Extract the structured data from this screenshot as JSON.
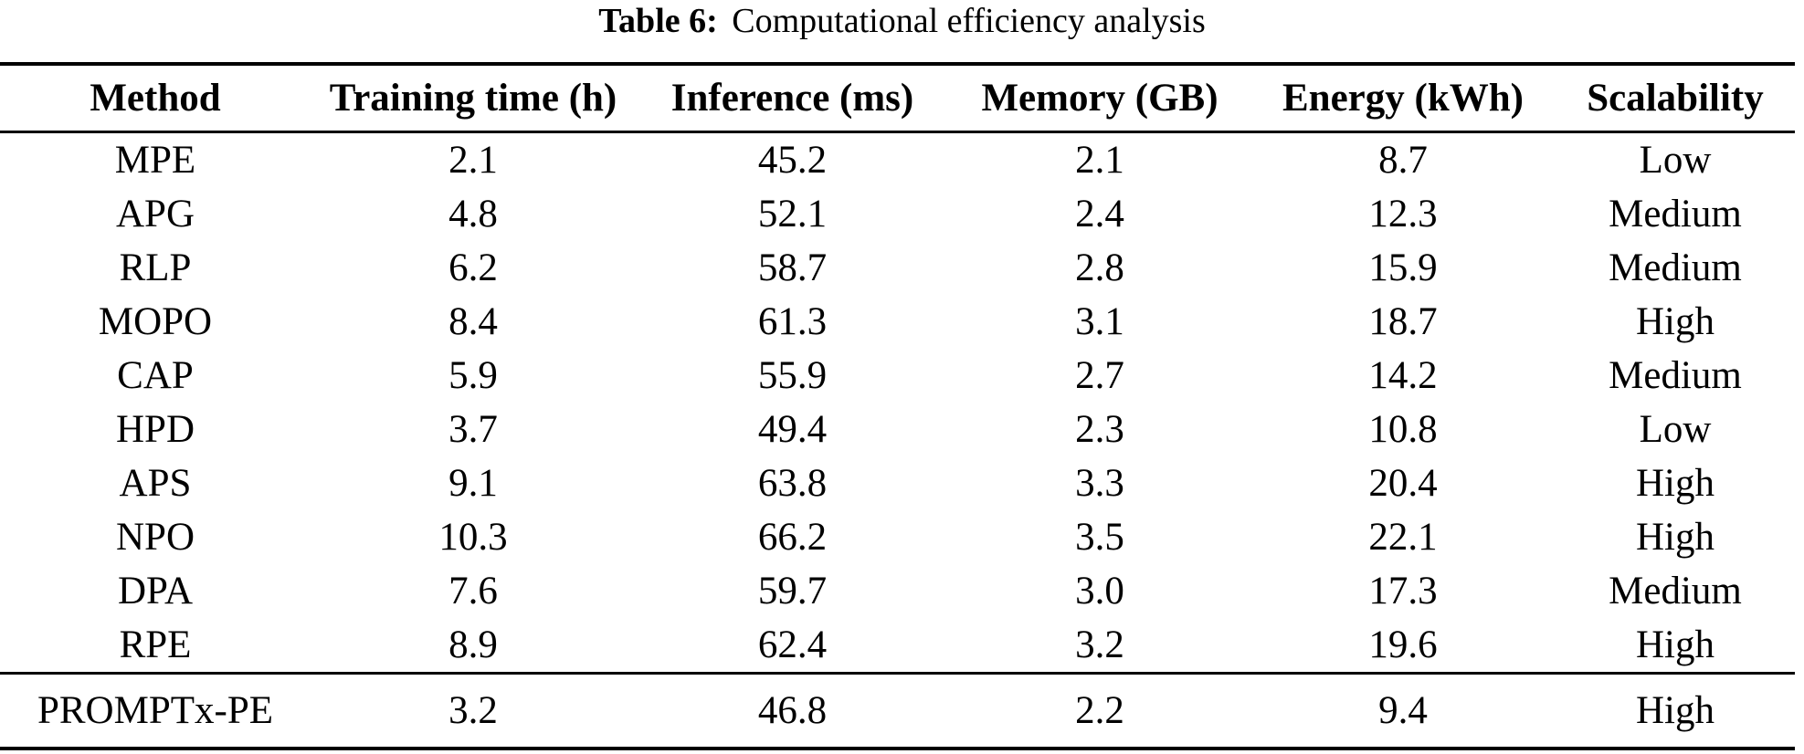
{
  "caption": {
    "label": "Table 6:",
    "text": "Computational efficiency analysis"
  },
  "table": {
    "columns": [
      "Method",
      "Training time (h)",
      "Inference (ms)",
      "Memory (GB)",
      "Energy (kWh)",
      "Scalability"
    ],
    "rows": [
      [
        "MPE",
        "2.1",
        "45.2",
        "2.1",
        "8.7",
        "Low"
      ],
      [
        "APG",
        "4.8",
        "52.1",
        "2.4",
        "12.3",
        "Medium"
      ],
      [
        "RLP",
        "6.2",
        "58.7",
        "2.8",
        "15.9",
        "Medium"
      ],
      [
        "MOPO",
        "8.4",
        "61.3",
        "3.1",
        "18.7",
        "High"
      ],
      [
        "CAP",
        "5.9",
        "55.9",
        "2.7",
        "14.2",
        "Medium"
      ],
      [
        "HPD",
        "3.7",
        "49.4",
        "2.3",
        "10.8",
        "Low"
      ],
      [
        "APS",
        "9.1",
        "63.8",
        "3.3",
        "20.4",
        "High"
      ],
      [
        "NPO",
        "10.3",
        "66.2",
        "3.5",
        "22.1",
        "High"
      ],
      [
        "DPA",
        "7.6",
        "59.7",
        "3.0",
        "17.3",
        "Medium"
      ],
      [
        "RPE",
        "8.9",
        "62.4",
        "3.2",
        "19.6",
        "High"
      ]
    ],
    "final_row": [
      "PROMPTx-PE",
      "3.2",
      "46.8",
      "2.2",
      "9.4",
      "High"
    ],
    "colors": {
      "text": "#000000",
      "background": "#ffffff",
      "rule": "#000000"
    }
  }
}
